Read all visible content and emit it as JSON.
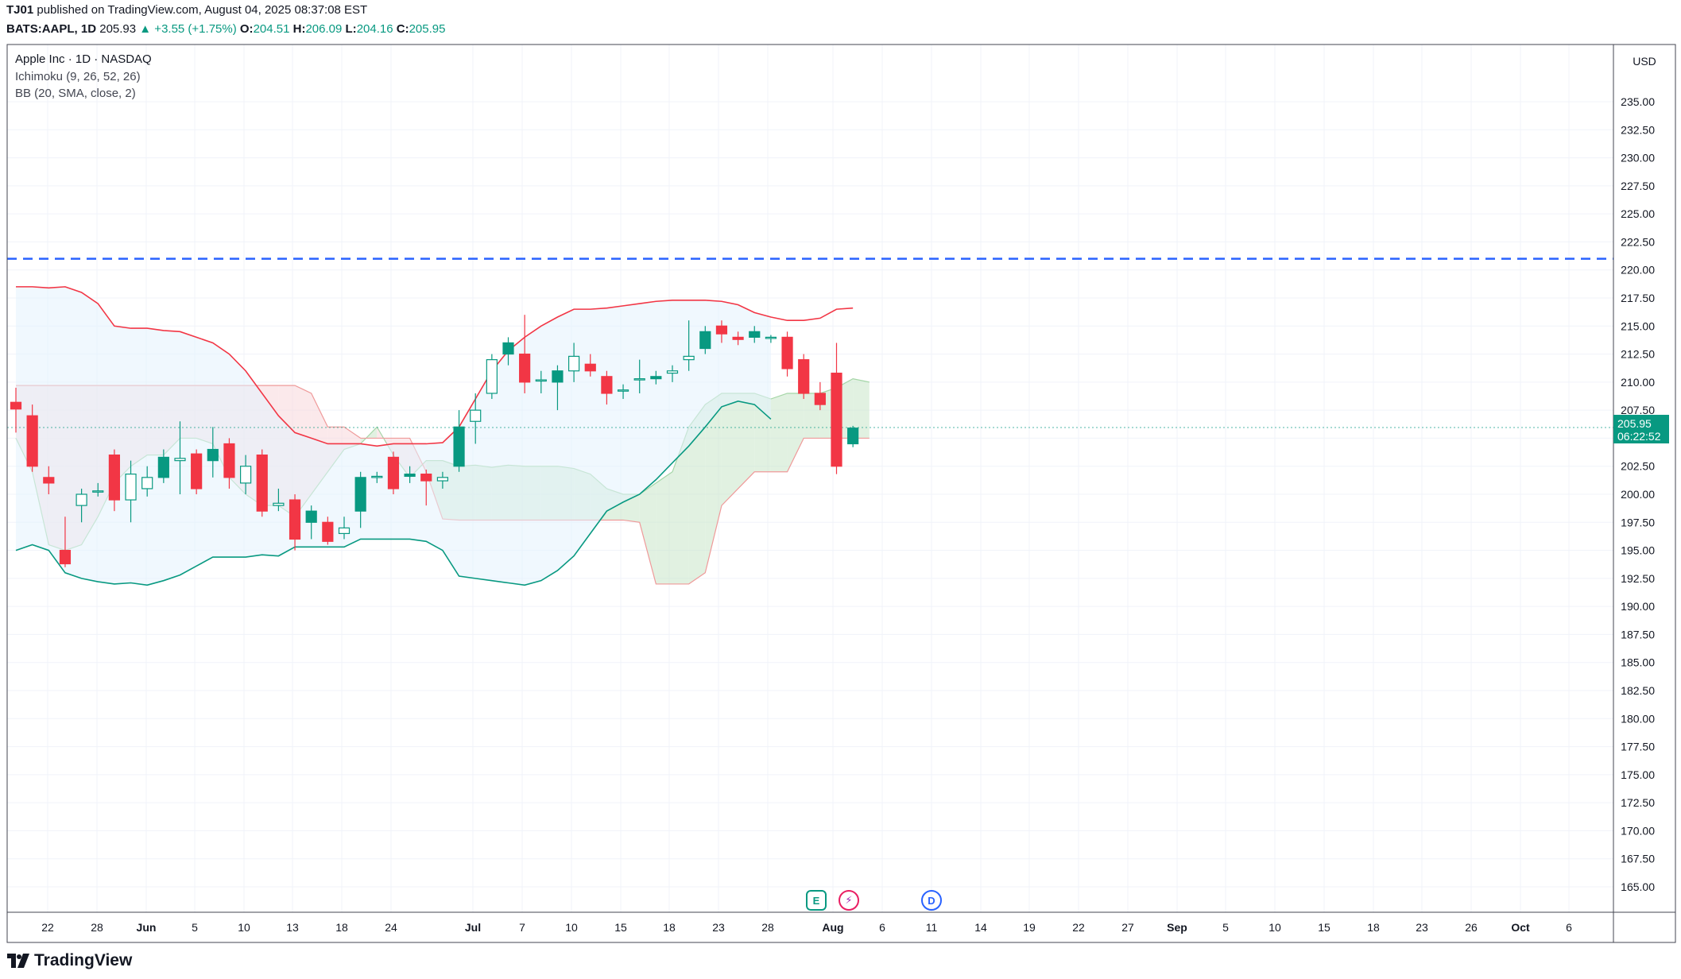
{
  "header": {
    "publisher": "TJ01",
    "publish_text": "published on TradingView.com, August 04, 2025 08:37:08 EST",
    "symbol": "BATS:AAPL, 1D",
    "last": "205.93",
    "change": "▲ +3.55 (+1.75%)",
    "o_label": "O:",
    "o_value": "204.51",
    "h_label": "H:",
    "h_value": "206.09",
    "l_label": "L:",
    "l_value": "204.16",
    "c_label": "C:",
    "c_value": "205.95"
  },
  "legend": {
    "title": "Apple Inc · 1D · NASDAQ",
    "ichimoku": "Ichimoku (9, 26, 52, 26)",
    "bb": "BB (20, SMA, close, 2)"
  },
  "axis": {
    "currency": "USD",
    "price_badge": "205.95",
    "countdown": "06:22:52"
  },
  "events": {
    "earnings": "E",
    "dividend": "D"
  },
  "brand": "TradingView",
  "colors": {
    "up": "#089981",
    "down": "#f23645",
    "bb_upper": "#f23645",
    "bb_lower": "#089981",
    "cloud_green": "#c8e6c9",
    "cloud_red": "#f8d7da",
    "bb_fill": "#e3f2fd",
    "hline": "#2962ff"
  },
  "chart_data": {
    "type": "candlestick",
    "ylim": [
      162.5,
      237.5
    ],
    "y_ticks": [
      235.0,
      232.5,
      230.0,
      227.5,
      225.0,
      222.5,
      220.0,
      217.5,
      215.0,
      212.5,
      210.0,
      207.5,
      205.0,
      202.5,
      200.0,
      197.5,
      195.0,
      192.5,
      190.0,
      187.5,
      185.0,
      182.5,
      180.0,
      177.5,
      175.0,
      172.5,
      170.0,
      167.5,
      165.0
    ],
    "x_ticks": [
      "22",
      "28",
      "Jun",
      "5",
      "10",
      "13",
      "18",
      "24",
      "Jul",
      "7",
      "10",
      "15",
      "18",
      "23",
      "28",
      "Aug",
      "6",
      "11",
      "14",
      "19",
      "22",
      "27",
      "Sep",
      "5",
      "10",
      "15",
      "18",
      "23",
      "26",
      "Oct",
      "6"
    ],
    "horizontal_line": 221.0,
    "candles": [
      {
        "o": 208.2,
        "h": 209.5,
        "l": 205.5,
        "c": 207.6
      },
      {
        "o": 207.0,
        "h": 208.0,
        "l": 202.0,
        "c": 202.5
      },
      {
        "o": 201.5,
        "h": 202.5,
        "l": 200.0,
        "c": 201.0
      },
      {
        "o": 195.0,
        "h": 198.0,
        "l": 193.5,
        "c": 193.8
      },
      {
        "o": 199.0,
        "h": 200.5,
        "l": 197.5,
        "c": 200.0
      },
      {
        "o": 200.3,
        "h": 201.0,
        "l": 199.8,
        "c": 200.3
      },
      {
        "o": 203.5,
        "h": 204.0,
        "l": 198.5,
        "c": 199.5
      },
      {
        "o": 199.5,
        "h": 203.0,
        "l": 197.5,
        "c": 201.8
      },
      {
        "o": 200.5,
        "h": 202.5,
        "l": 199.8,
        "c": 201.5
      },
      {
        "o": 201.5,
        "h": 204.0,
        "l": 201.0,
        "c": 203.3
      },
      {
        "o": 203.0,
        "h": 206.5,
        "l": 200.0,
        "c": 203.2
      },
      {
        "o": 203.6,
        "h": 204.0,
        "l": 200.0,
        "c": 200.5
      },
      {
        "o": 203.0,
        "h": 206.0,
        "l": 201.5,
        "c": 204.0
      },
      {
        "o": 204.5,
        "h": 205.0,
        "l": 200.5,
        "c": 201.5
      },
      {
        "o": 201.0,
        "h": 203.5,
        "l": 200.0,
        "c": 202.5
      },
      {
        "o": 203.5,
        "h": 204.0,
        "l": 198.0,
        "c": 198.5
      },
      {
        "o": 199.0,
        "h": 200.5,
        "l": 198.5,
        "c": 199.2
      },
      {
        "o": 199.5,
        "h": 200.0,
        "l": 195.0,
        "c": 196.0
      },
      {
        "o": 197.5,
        "h": 199.0,
        "l": 196.0,
        "c": 198.5
      },
      {
        "o": 197.5,
        "h": 198.0,
        "l": 195.5,
        "c": 195.8
      },
      {
        "o": 196.5,
        "h": 198.0,
        "l": 196.0,
        "c": 197.0
      },
      {
        "o": 198.5,
        "h": 202.0,
        "l": 197.0,
        "c": 201.5
      },
      {
        "o": 201.5,
        "h": 202.0,
        "l": 201.0,
        "c": 201.6
      },
      {
        "o": 203.3,
        "h": 203.8,
        "l": 200.0,
        "c": 200.5
      },
      {
        "o": 201.6,
        "h": 202.5,
        "l": 201.0,
        "c": 201.8
      },
      {
        "o": 201.8,
        "h": 202.2,
        "l": 199.0,
        "c": 201.2
      },
      {
        "o": 201.2,
        "h": 202.0,
        "l": 200.5,
        "c": 201.5
      },
      {
        "o": 202.5,
        "h": 207.5,
        "l": 202.0,
        "c": 206.0
      },
      {
        "o": 206.5,
        "h": 209.0,
        "l": 204.5,
        "c": 207.5
      },
      {
        "o": 209.0,
        "h": 212.5,
        "l": 208.5,
        "c": 212.0
      },
      {
        "o": 212.5,
        "h": 214.0,
        "l": 211.5,
        "c": 213.5
      },
      {
        "o": 212.5,
        "h": 216.0,
        "l": 209.0,
        "c": 210.0
      },
      {
        "o": 210.2,
        "h": 211.0,
        "l": 209.0,
        "c": 210.2
      },
      {
        "o": 210.0,
        "h": 211.5,
        "l": 207.5,
        "c": 211.0
      },
      {
        "o": 211.0,
        "h": 213.5,
        "l": 210.0,
        "c": 212.3
      },
      {
        "o": 211.6,
        "h": 212.5,
        "l": 210.5,
        "c": 211.0
      },
      {
        "o": 210.5,
        "h": 211.0,
        "l": 208.0,
        "c": 209.0
      },
      {
        "o": 209.3,
        "h": 209.8,
        "l": 208.5,
        "c": 209.3
      },
      {
        "o": 210.3,
        "h": 212.0,
        "l": 209.0,
        "c": 210.3
      },
      {
        "o": 210.3,
        "h": 211.0,
        "l": 209.8,
        "c": 210.5
      },
      {
        "o": 210.8,
        "h": 211.5,
        "l": 210.0,
        "c": 211.0
      },
      {
        "o": 212.0,
        "h": 215.5,
        "l": 211.0,
        "c": 212.3
      },
      {
        "o": 213.0,
        "h": 215.0,
        "l": 212.5,
        "c": 214.5
      },
      {
        "o": 215.0,
        "h": 215.5,
        "l": 213.5,
        "c": 214.3
      },
      {
        "o": 214.0,
        "h": 214.5,
        "l": 213.3,
        "c": 213.8
      },
      {
        "o": 214.0,
        "h": 215.0,
        "l": 213.5,
        "c": 214.5
      },
      {
        "o": 214.0,
        "h": 214.2,
        "l": 213.5,
        "c": 214.0
      },
      {
        "o": 214.0,
        "h": 214.5,
        "l": 210.5,
        "c": 211.2
      },
      {
        "o": 212.0,
        "h": 212.5,
        "l": 208.5,
        "c": 209.0
      },
      {
        "o": 209.0,
        "h": 210.0,
        "l": 207.5,
        "c": 208.0
      },
      {
        "o": 210.8,
        "h": 213.5,
        "l": 201.8,
        "c": 202.5
      },
      {
        "o": 204.5,
        "h": 206.1,
        "l": 204.2,
        "c": 205.9
      }
    ],
    "bb_upper": [
      218.5,
      218.5,
      218.4,
      218.5,
      218.0,
      217.0,
      215.0,
      214.8,
      214.8,
      214.6,
      214.5,
      214.0,
      213.5,
      212.5,
      211.0,
      209.0,
      207.0,
      205.5,
      205.0,
      204.5,
      204.5,
      204.5,
      204.3,
      204.5,
      204.5,
      204.5,
      204.6,
      206.0,
      208.5,
      211.0,
      212.8,
      214.0,
      215.0,
      215.8,
      216.5,
      216.5,
      216.6,
      216.8,
      217.0,
      217.2,
      217.3,
      217.3,
      217.3,
      217.2,
      216.9,
      216.2,
      215.8,
      215.5,
      215.5,
      215.7,
      216.5,
      216.6
    ],
    "bb_lower": [
      195.0,
      195.5,
      195.0,
      193.0,
      192.5,
      192.2,
      192.0,
      192.1,
      191.9,
      192.3,
      192.8,
      193.6,
      194.4,
      194.4,
      194.4,
      194.6,
      194.5,
      195.3,
      195.3,
      195.3,
      195.3,
      196.0,
      196.0,
      196.0,
      196.0,
      195.8,
      195.0,
      192.7,
      192.5,
      192.3,
      192.1,
      191.9,
      192.3,
      193.2,
      194.5,
      196.5,
      198.5,
      199.3,
      200.0,
      201.3,
      202.8,
      204.3,
      206.0,
      207.8,
      208.3,
      208.0,
      206.7
    ],
    "ichimoku_span_a": [
      205.0,
      202.0,
      195.5,
      195.0,
      195.5,
      198.0,
      201.0,
      202.5,
      203.5,
      203.5,
      205.0,
      205.0,
      204.5,
      201.5,
      200.0,
      199.0,
      199.0,
      198.0,
      200.0,
      202.0,
      204.0,
      204.5,
      206.0,
      203.5,
      201.5,
      203.0,
      203.0,
      202.5,
      202.6,
      202.4,
      202.6,
      202.5,
      202.5,
      202.5,
      202.3,
      201.8,
      200.5,
      200.0,
      200.0,
      201.0,
      202.0,
      206.0,
      208.0,
      209.0,
      209.0,
      209.0,
      208.5,
      209.0,
      209.0,
      209.0,
      209.5,
      210.3,
      210.0
    ],
    "ichimoku_span_b": [
      209.7,
      209.7,
      209.7,
      209.7,
      209.7,
      209.7,
      209.7,
      209.7,
      209.7,
      209.7,
      209.7,
      209.7,
      209.7,
      209.7,
      209.7,
      209.7,
      209.7,
      209.7,
      209.0,
      206.0,
      206.0,
      205.0,
      205.0,
      205.0,
      205.0,
      202.0,
      197.8,
      197.7,
      197.7,
      197.7,
      197.7,
      197.7,
      197.7,
      197.7,
      197.7,
      197.7,
      197.7,
      197.7,
      197.5,
      192.0,
      192.0,
      192.0,
      193.0,
      199.0,
      200.5,
      202.0,
      202.0,
      202.0,
      205.0,
      205.0,
      205.0,
      205.0,
      205.0
    ],
    "last_price": 205.95
  }
}
